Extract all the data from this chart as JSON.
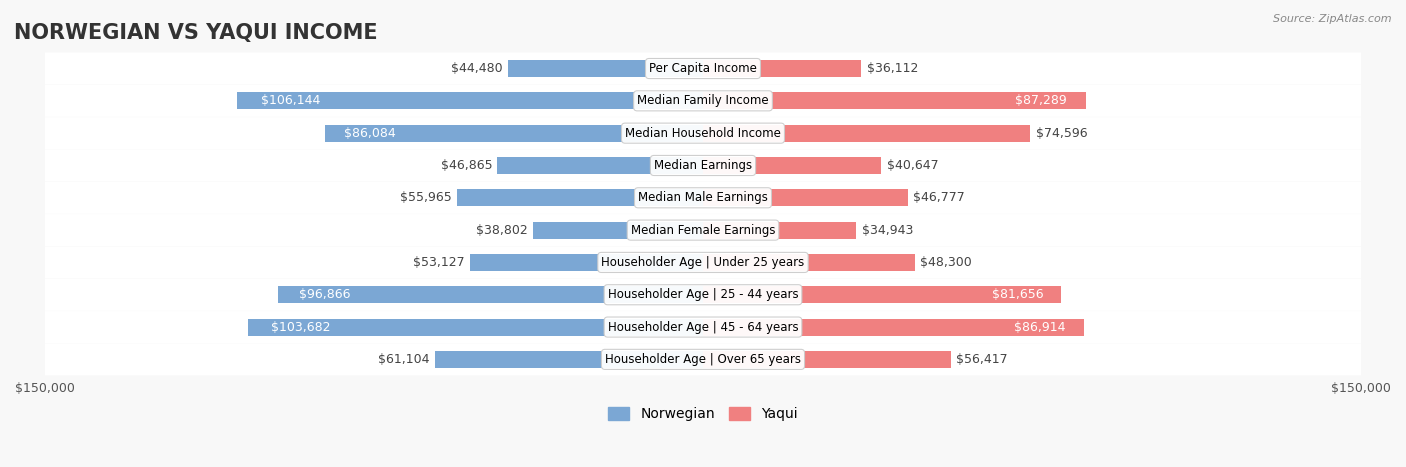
{
  "title": "NORWEGIAN VS YAQUI INCOME",
  "source": "Source: ZipAtlas.com",
  "categories": [
    "Per Capita Income",
    "Median Family Income",
    "Median Household Income",
    "Median Earnings",
    "Median Male Earnings",
    "Median Female Earnings",
    "Householder Age | Under 25 years",
    "Householder Age | 25 - 44 years",
    "Householder Age | 45 - 64 years",
    "Householder Age | Over 65 years"
  ],
  "norwegian_values": [
    44480,
    106144,
    86084,
    46865,
    55965,
    38802,
    53127,
    96866,
    103682,
    61104
  ],
  "yaqui_values": [
    36112,
    87289,
    74596,
    40647,
    46777,
    34943,
    48300,
    81656,
    86914,
    56417
  ],
  "norwegian_labels": [
    "$44,480",
    "$106,144",
    "$86,084",
    "$46,865",
    "$55,965",
    "$38,802",
    "$53,127",
    "$96,866",
    "$103,682",
    "$61,104"
  ],
  "yaqui_labels": [
    "$36,112",
    "$87,289",
    "$74,596",
    "$40,647",
    "$46,777",
    "$34,943",
    "$48,300",
    "$81,656",
    "$86,914",
    "$56,417"
  ],
  "norwegian_color": "#7BA7D4",
  "yaqui_color": "#F08080",
  "norwegian_label_color_normal": "#555555",
  "norwegian_label_color_inside": "#ffffff",
  "yaqui_label_color_normal": "#555555",
  "yaqui_label_color_inside": "#ffffff",
  "max_value": 150000,
  "background_color": "#f5f5f5",
  "row_bg_color": "#ececec",
  "title_fontsize": 15,
  "label_fontsize": 9,
  "axis_label_fontsize": 9,
  "legend_fontsize": 10,
  "inside_threshold": 80000
}
